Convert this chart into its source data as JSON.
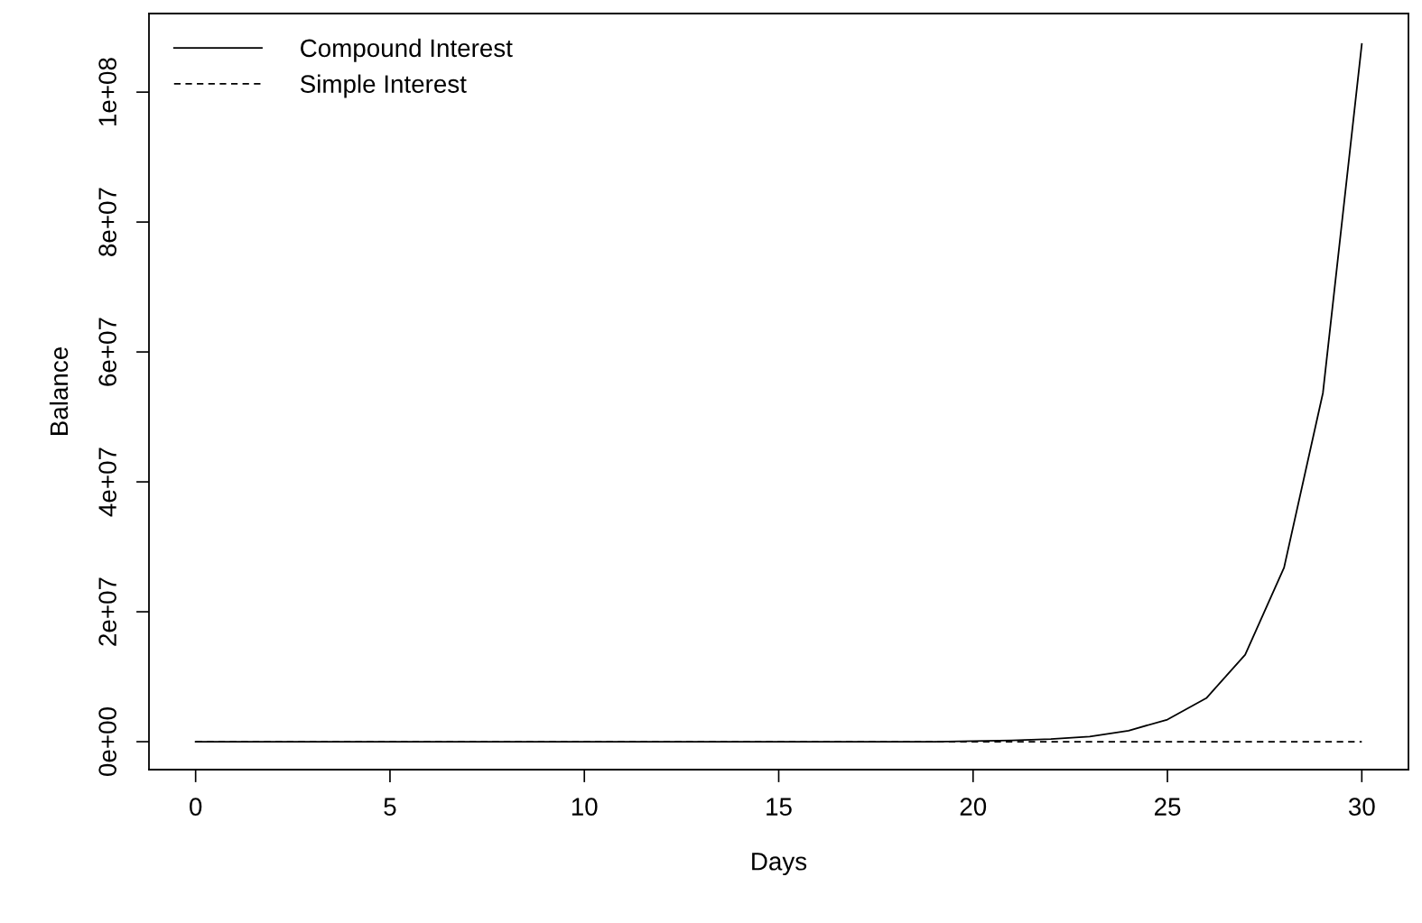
{
  "chart_data": {
    "type": "line",
    "xlabel": "Days",
    "ylabel": "Balance",
    "x": [
      0,
      1,
      2,
      3,
      4,
      5,
      6,
      7,
      8,
      9,
      10,
      11,
      12,
      13,
      14,
      15,
      16,
      17,
      18,
      19,
      20,
      21,
      22,
      23,
      24,
      25,
      26,
      27,
      28,
      29,
      30
    ],
    "series": [
      {
        "name": "Compound Interest",
        "color": "#000000",
        "line_style": "solid",
        "values": [
          0,
          0,
          0,
          0,
          0,
          0,
          0,
          0,
          0,
          0,
          0,
          0,
          0,
          0,
          0,
          0,
          0,
          0,
          0,
          0,
          100000,
          200000,
          400000,
          800000,
          1700000,
          3400000,
          6700000,
          13400000,
          26800000,
          53700000,
          107400000
        ]
      },
      {
        "name": "Simple Interest",
        "color": "#000000",
        "line_style": "dashed",
        "values": [
          0,
          0,
          0,
          0,
          0,
          0,
          0,
          0,
          0,
          0,
          0,
          0,
          0,
          0,
          0,
          0,
          0,
          0,
          0,
          0,
          0,
          0,
          0,
          0,
          0,
          0,
          0,
          0,
          0,
          0,
          0
        ]
      }
    ],
    "xlim": [
      -1.2,
      31.2
    ],
    "ylim": [
      -4300000,
      112100000
    ],
    "xticks": [
      0,
      5,
      10,
      15,
      20,
      25,
      30
    ],
    "yticks": [
      {
        "value": 0,
        "label": "0e+00"
      },
      {
        "value": 20000000,
        "label": "2e+07"
      },
      {
        "value": 40000000,
        "label": "4e+07"
      },
      {
        "value": 60000000,
        "label": "6e+07"
      },
      {
        "value": 80000000,
        "label": "8e+07"
      },
      {
        "value": 100000000,
        "label": "1e+08"
      }
    ],
    "legend": "top left",
    "grid": false
  }
}
